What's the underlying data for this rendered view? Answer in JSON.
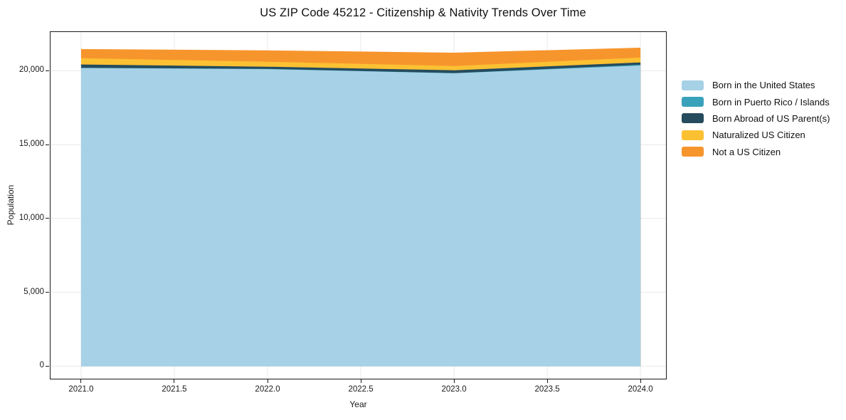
{
  "chart_data": {
    "type": "area",
    "stacked": true,
    "title": "US ZIP Code 45212 - Citizenship & Nativity Trends Over Time",
    "xlabel": "Year",
    "ylabel": "Population",
    "x": [
      2021,
      2022,
      2023,
      2024
    ],
    "series": [
      {
        "name": "Born in the United States",
        "color": "#a7d1e6",
        "values": [
          20180,
          20110,
          19830,
          20350
        ]
      },
      {
        "name": "Born in Puerto Rico / Islands",
        "color": "#3aa1bb",
        "values": [
          20,
          15,
          10,
          60
        ]
      },
      {
        "name": "Born Abroad of US Parent(s)",
        "color": "#254b5e",
        "values": [
          220,
          150,
          190,
          150
        ]
      },
      {
        "name": "Naturalized US Citizen",
        "color": "#fcc133",
        "values": [
          430,
          330,
          290,
          330
        ]
      },
      {
        "name": "Not a US Citizen",
        "color": "#f7952d",
        "values": [
          620,
          770,
          900,
          670
        ]
      }
    ],
    "totals": [
      21470,
      21375,
      21220,
      21560
    ],
    "x_ticks": {
      "values": [
        2021.0,
        2021.5,
        2022.0,
        2022.5,
        2023.0,
        2023.5,
        2024.0
      ],
      "labels": [
        "2021.0",
        "2021.5",
        "2022.0",
        "2022.5",
        "2023.0",
        "2023.5",
        "2024.0"
      ]
    },
    "y_ticks": {
      "values": [
        0,
        5000,
        10000,
        15000,
        20000
      ],
      "labels": [
        "0",
        "5,000",
        "10,000",
        "15,000",
        "20,000"
      ]
    },
    "xlim": [
      2020.836,
      2024.137
    ],
    "ylim": [
      -850,
      22620
    ],
    "grid": true,
    "grid_color": "#e8e8e8",
    "legend_position": "right",
    "background_color": "#ffffff"
  }
}
